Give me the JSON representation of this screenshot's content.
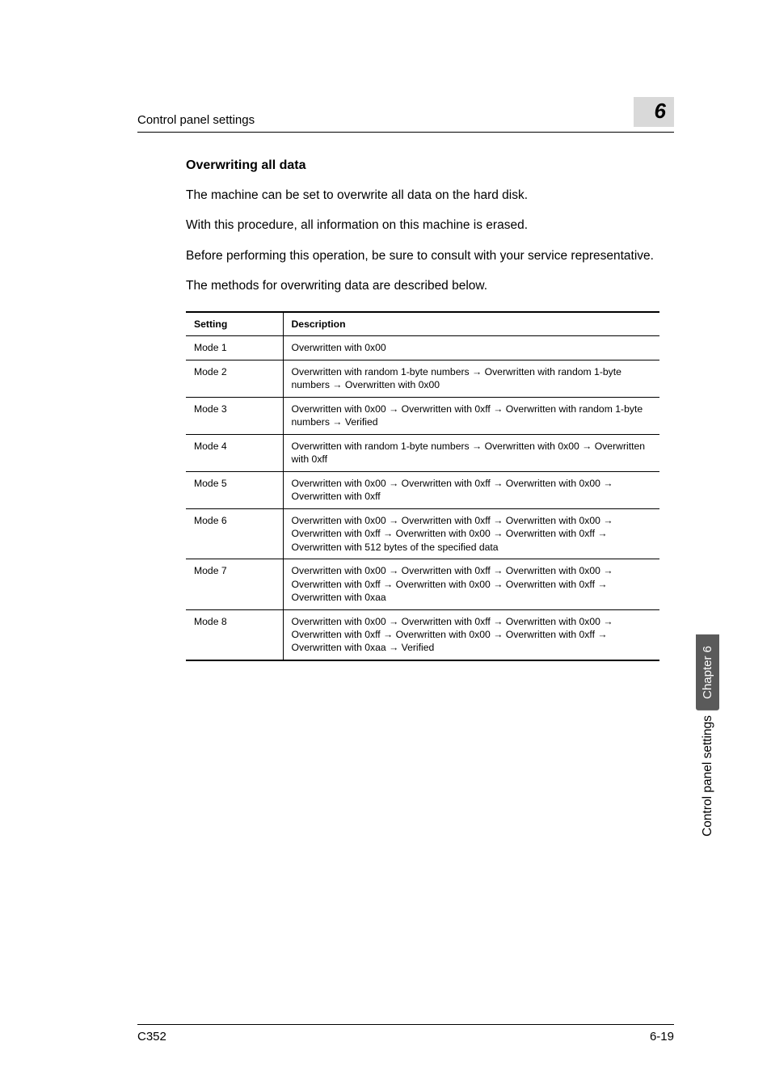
{
  "header": {
    "title": "Control panel settings",
    "chapter_number": "6"
  },
  "section": {
    "heading": "Overwriting all data",
    "paragraphs": [
      "The machine can be set to overwrite all data on the hard disk.",
      "With this procedure, all information on this machine is erased.",
      "Before performing this operation, be sure to consult with your service representative.",
      "The methods for overwriting data are described below."
    ]
  },
  "table": {
    "columns": [
      "Setting",
      "Description"
    ],
    "rows": [
      {
        "setting": "Mode 1",
        "desc": "Overwritten with 0x00"
      },
      {
        "setting": "Mode 2",
        "desc": "Overwritten with random 1-byte numbers → Overwritten with random 1-byte numbers → Overwritten with 0x00"
      },
      {
        "setting": "Mode 3",
        "desc": "Overwritten with 0x00 → Overwritten with 0xff → Overwritten with random 1-byte numbers → Verified"
      },
      {
        "setting": "Mode 4",
        "desc": "Overwritten with random 1-byte numbers → Overwritten with 0x00 → Overwritten with 0xff"
      },
      {
        "setting": "Mode 5",
        "desc": "Overwritten with 0x00 → Overwritten with 0xff → Overwritten with 0x00 → Overwritten with 0xff"
      },
      {
        "setting": "Mode 6",
        "desc": "Overwritten with 0x00 → Overwritten with 0xff → Overwritten with 0x00 → Overwritten with 0xff → Overwritten with 0x00 → Overwritten with 0xff → Overwritten with 512 bytes of the specified data"
      },
      {
        "setting": "Mode 7",
        "desc": "Overwritten with 0x00 → Overwritten with 0xff → Overwritten with 0x00 → Overwritten with 0xff → Overwritten with 0x00 → Overwritten with 0xff → Overwritten with 0xaa"
      },
      {
        "setting": "Mode 8",
        "desc": "Overwritten with 0x00 → Overwritten with 0xff → Overwritten with 0x00 → Overwritten with 0xff → Overwritten with 0x00 → Overwritten with 0xff → Overwritten with 0xaa → Verified"
      }
    ]
  },
  "side": {
    "chapter_label": "Chapter 6",
    "section_label": "Control panel settings"
  },
  "footer": {
    "left": "C352",
    "right": "6-19"
  }
}
